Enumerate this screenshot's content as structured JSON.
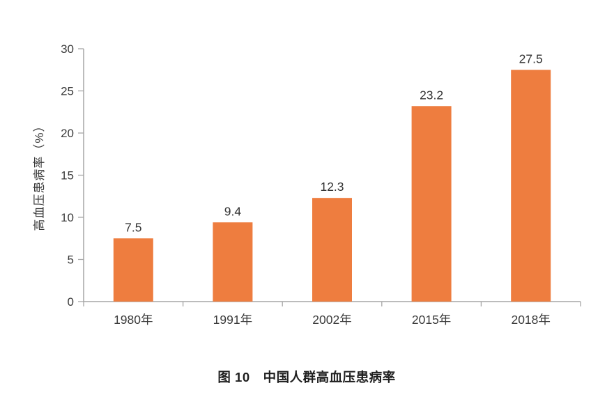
{
  "figure": {
    "caption_prefix": "图 10",
    "caption_title": "中国人群高血压患病率",
    "caption_full": "图 10　中国人群高血压患病率"
  },
  "chart_data": {
    "type": "bar",
    "categories": [
      "1980年",
      "1991年",
      "2002年",
      "2015年",
      "2018年"
    ],
    "values": [
      7.5,
      9.4,
      12.3,
      23.2,
      27.5
    ],
    "value_labels": [
      "7.5",
      "9.4",
      "12.3",
      "23.2",
      "27.5"
    ],
    "title": "图 10　中国人群高血压患病率",
    "xlabel": "",
    "ylabel": "高血压患病率（%）",
    "ylim": [
      0,
      30
    ],
    "yticks": [
      0,
      5,
      10,
      15,
      20,
      25,
      30
    ],
    "grid": false,
    "legend": false,
    "colors": {
      "bar": "#EE7D3F",
      "axis": "#A6A6A6",
      "tick_text": "#3B3B3B",
      "value_text": "#333333",
      "caption_text": "#1F1F1F",
      "background": "#FFFFFF"
    }
  }
}
